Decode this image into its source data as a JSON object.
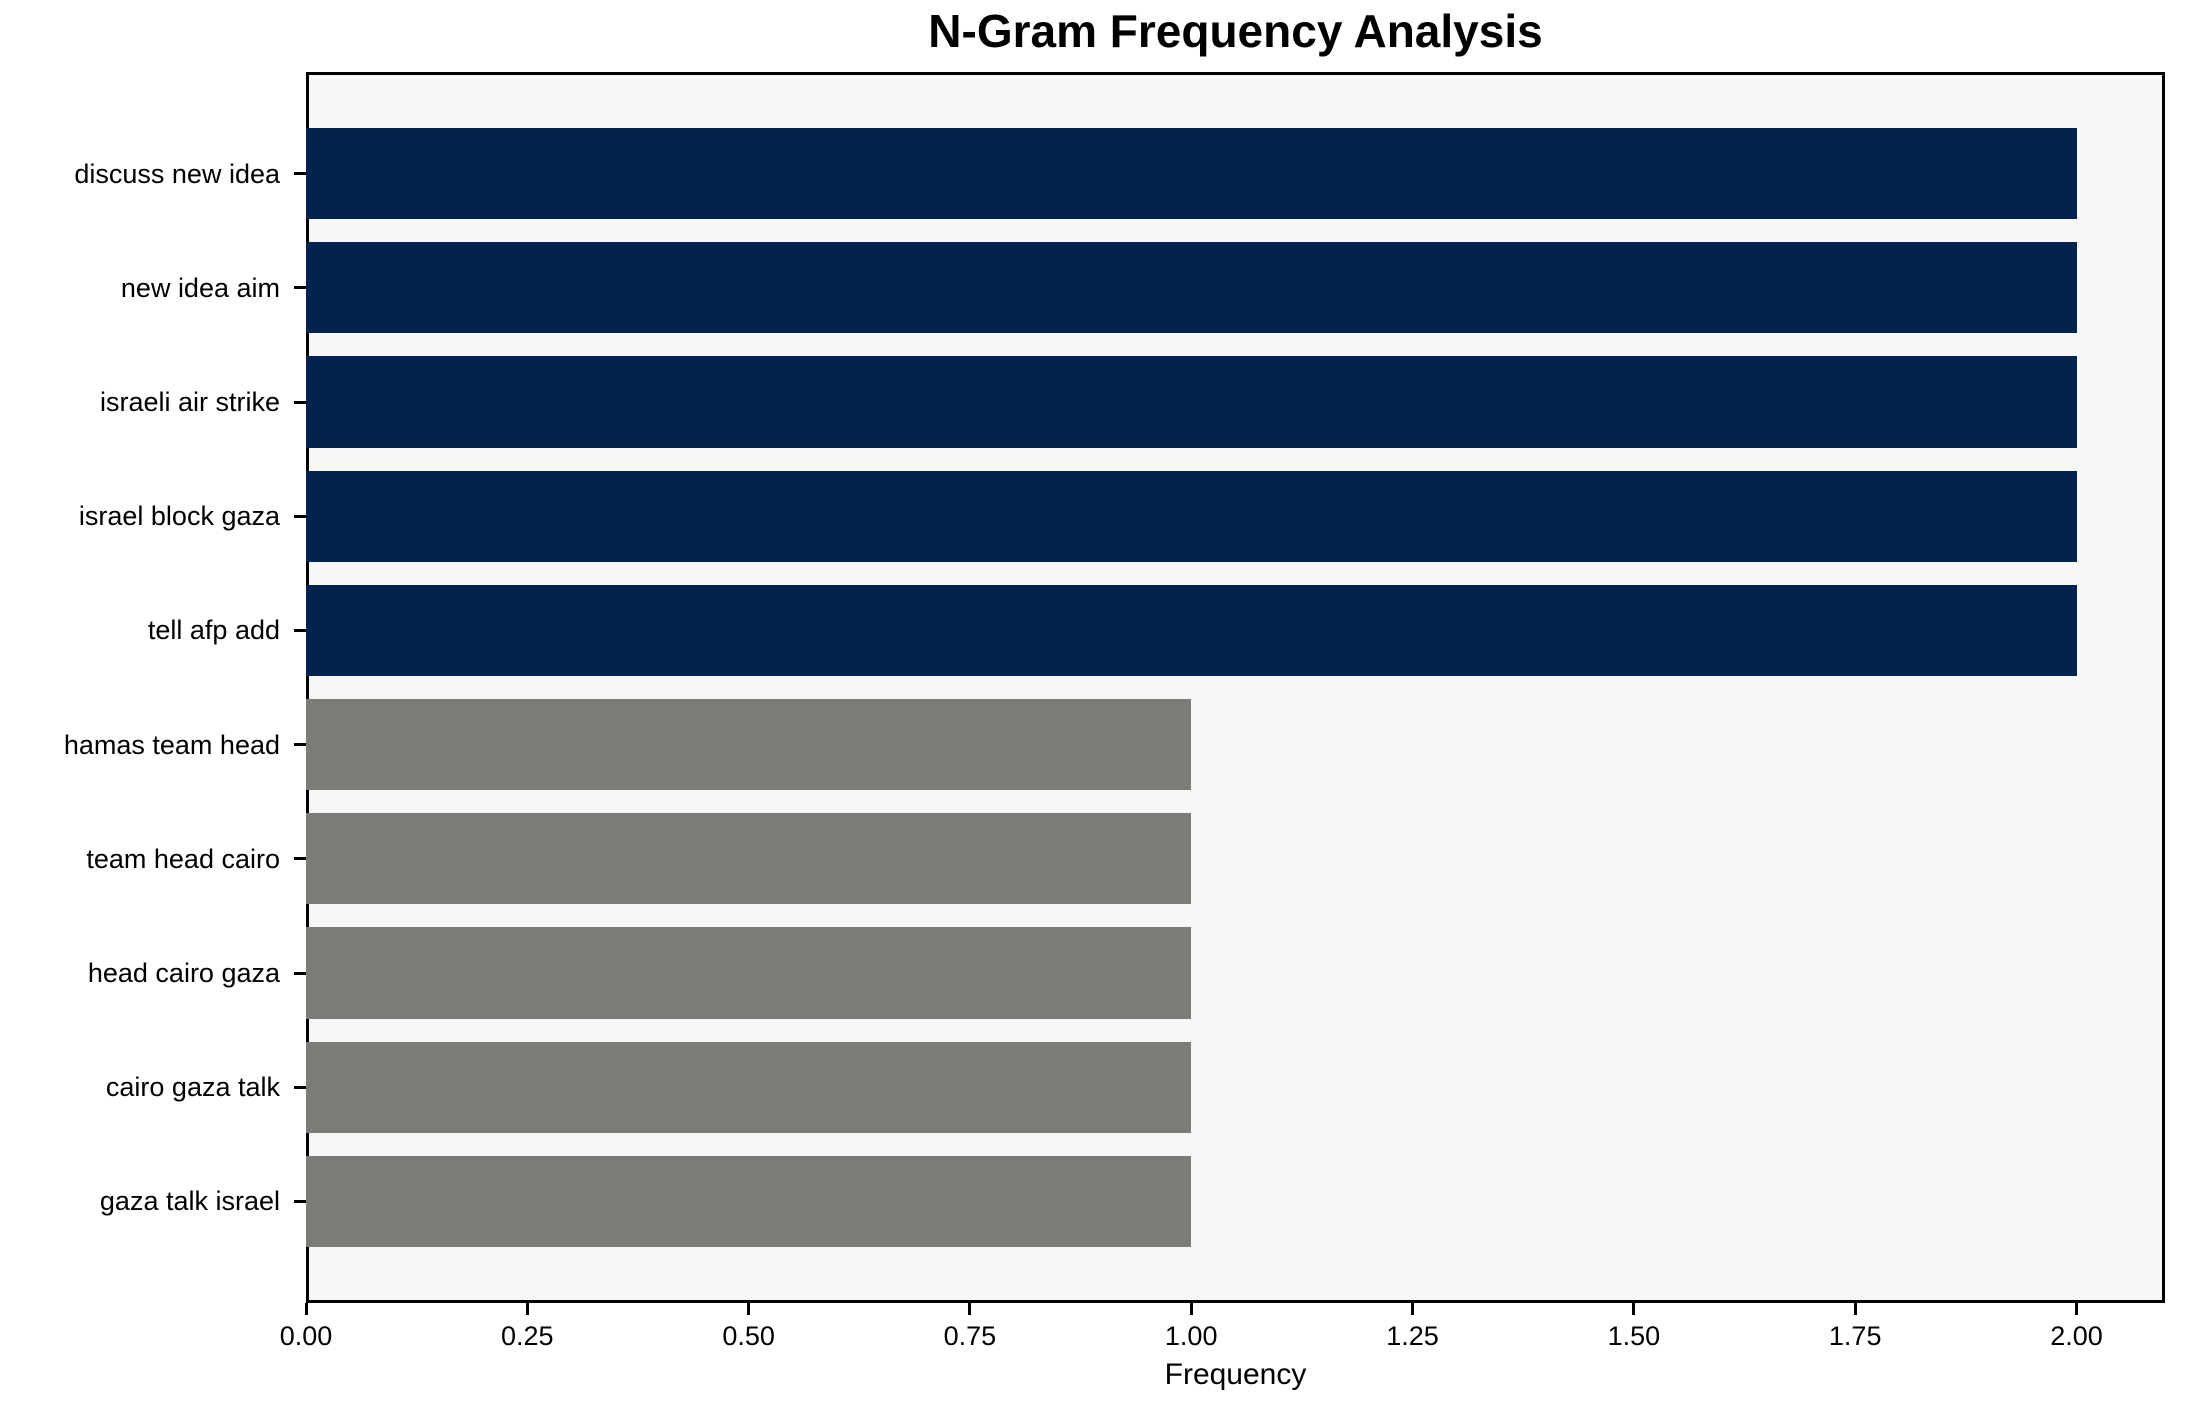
{
  "chart_data": {
    "type": "bar",
    "orientation": "horizontal",
    "title": "N-Gram Frequency Analysis",
    "xlabel": "Frequency",
    "ylabel": "",
    "categories": [
      "discuss new idea",
      "new idea aim",
      "israeli air strike",
      "israel block gaza",
      "tell afp add",
      "hamas team head",
      "team head cairo",
      "head cairo gaza",
      "cairo gaza talk",
      "gaza talk israel"
    ],
    "values": [
      2,
      2,
      2,
      2,
      2,
      1,
      1,
      1,
      1,
      1
    ],
    "bar_colors": [
      "#02234d",
      "#02234d",
      "#02234d",
      "#02234d",
      "#02234d",
      "#7b7b78",
      "#7b7b78",
      "#7b7b78",
      "#7b7b78",
      "#7b7b78"
    ],
    "xlim": [
      0,
      2.1
    ],
    "xticks": [
      0.0,
      0.25,
      0.5,
      0.75,
      1.0,
      1.25,
      1.5,
      1.75,
      2.0
    ],
    "xtick_labels": [
      "0.00",
      "0.25",
      "0.50",
      "0.75",
      "1.00",
      "1.25",
      "1.50",
      "1.75",
      "2.00"
    ],
    "grid": false,
    "legend": null,
    "colors": {
      "high_freq_bar": "#02234d",
      "low_freq_bar": "#7b7b78",
      "plot_background": "#f7f7f7",
      "figure_background": "#ffffff",
      "axis": "#000000",
      "text": "#000000"
    }
  }
}
